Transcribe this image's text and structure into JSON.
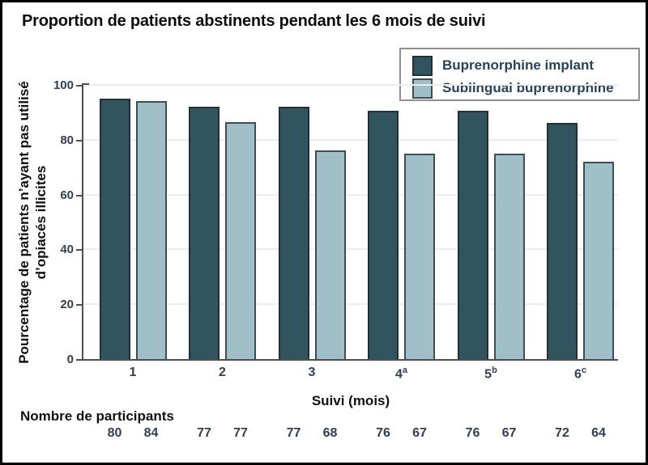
{
  "title": "Proportion de patients abstinents pendant les 6 mois de suivi",
  "colors": {
    "implant_fill": "#32545F",
    "implant_border": "#212F37",
    "sublingual_fill": "#A1BFC9",
    "sublingual_border": "#3C4D55",
    "axis": "#4F4F4F",
    "grid": "#ECECEC",
    "tick_text": "#333F52",
    "legend_text": "#27425D",
    "legend_border": "#8F8F8F"
  },
  "chart_data": {
    "type": "bar",
    "title": "Proportion de patients abstinents pendant les 6 mois de suivi",
    "xlabel": "Suivi (mois)",
    "ylabel": "Pourcentage de patients n’ayant pas utilisé d’opiacés illicites",
    "ylabel_lines": [
      "Pourcentage de patients n’ayant pas utilisé",
      "d’opiacés illicites"
    ],
    "categories": [
      {
        "base": "1",
        "sup": ""
      },
      {
        "base": "2",
        "sup": ""
      },
      {
        "base": "3",
        "sup": ""
      },
      {
        "base": "4",
        "sup": "a"
      },
      {
        "base": "5",
        "sup": "b"
      },
      {
        "base": "6",
        "sup": "c"
      }
    ],
    "series": [
      {
        "name": "Buprenorphine implant",
        "color": "#32545F",
        "border": "#212F37",
        "values": [
          95,
          92,
          92,
          90.5,
          90.5,
          86
        ]
      },
      {
        "name": "Sublingual buprenorphine",
        "color": "#A1BFC9",
        "border": "#3C4D55",
        "values": [
          94,
          86.5,
          76,
          75,
          75,
          72
        ]
      }
    ],
    "ylim": [
      0,
      100
    ],
    "yticks": [
      0,
      20,
      40,
      60,
      80,
      100
    ],
    "grid": true,
    "legend_position": "top-right"
  },
  "participants": {
    "label": "Nombre de participants",
    "values": [
      [
        80,
        84
      ],
      [
        77,
        77
      ],
      [
        77,
        68
      ],
      [
        76,
        67
      ],
      [
        76,
        67
      ],
      [
        72,
        64
      ]
    ]
  }
}
